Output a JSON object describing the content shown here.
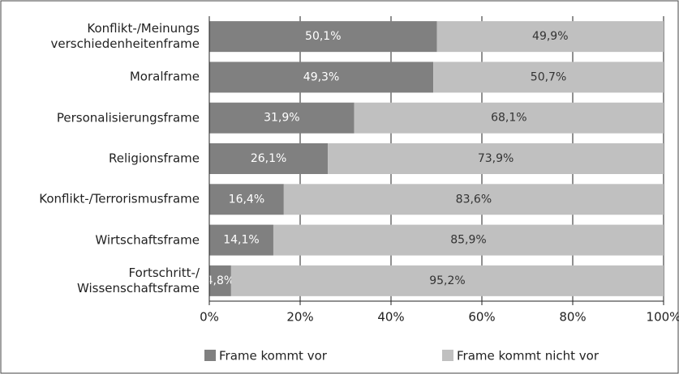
{
  "chart_data": {
    "type": "stacked-bar-horizontal",
    "categories": [
      "Konflikt-/Meinungs\nverschiedenheitenframe",
      "Moralframe",
      "Personalisierungsframe",
      "Religionsframe",
      "Konflikt-/Terrorismusframe",
      "Wirtschaftsframe",
      "Fortschritt-/\nWissenschaftsframe"
    ],
    "series": [
      {
        "name": "Frame kommt vor",
        "color": "#808080",
        "label_color": "#ffffff",
        "values": [
          50.1,
          49.3,
          31.9,
          26.1,
          16.4,
          14.1,
          4.8
        ],
        "value_labels": [
          "50,1%",
          "49,3%",
          "31,9%",
          "26,1%",
          "16,4%",
          "14,1%",
          "4,8%"
        ]
      },
      {
        "name": "Frame kommt nicht vor",
        "color": "#c0c0c0",
        "label_color": "#333333",
        "values": [
          49.9,
          50.7,
          68.1,
          73.9,
          83.6,
          85.9,
          95.2
        ],
        "value_labels": [
          "49,9%",
          "50,7%",
          "68,1%",
          "73,9%",
          "83,6%",
          "85,9%",
          "95,2%"
        ]
      }
    ],
    "xlim": [
      0,
      100
    ],
    "xticks": [
      {
        "value": 0,
        "label": "0%"
      },
      {
        "value": 20,
        "label": "20%"
      },
      {
        "value": 40,
        "label": "40%"
      },
      {
        "value": 60,
        "label": "60%"
      },
      {
        "value": 80,
        "label": "80%"
      },
      {
        "value": 100,
        "label": "100%"
      }
    ],
    "grid": true
  }
}
